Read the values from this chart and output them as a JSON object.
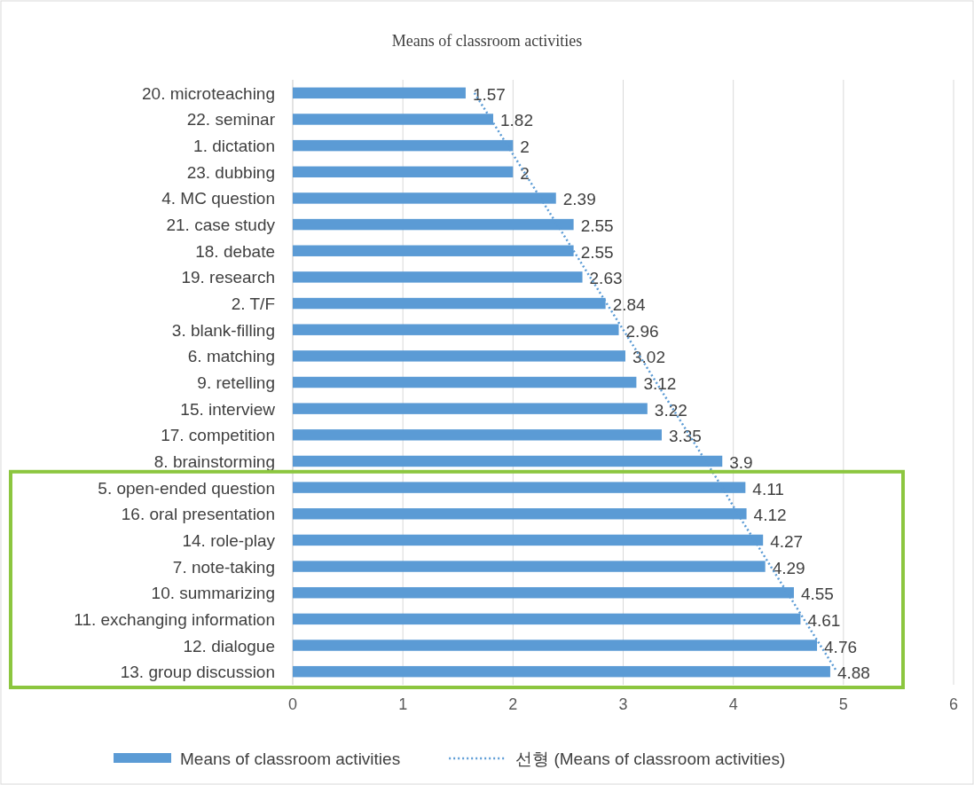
{
  "chart_data": {
    "type": "bar",
    "orientation": "horizontal",
    "title": "Means of classroom activities",
    "categories": [
      "20. microteaching",
      "22. seminar",
      "1. dictation",
      "23. dubbing",
      "4. MC question",
      "21. case study",
      "18. debate",
      "19. research",
      "2. T/F",
      "3. blank-filling",
      "6. matching",
      "9. retelling",
      "15. interview",
      "17. competition",
      "8. brainstorming",
      "5. open-ended question",
      "16. oral presentation",
      "14. role-play",
      "7. note-taking",
      "10. summarizing",
      "11. exchanging information",
      "12. dialogue",
      "13. group discussion"
    ],
    "series": [
      {
        "name": "Means of classroom activities",
        "color": "#5b9bd5",
        "values": [
          1.57,
          1.82,
          2,
          2,
          2.39,
          2.55,
          2.55,
          2.63,
          2.84,
          2.96,
          3.02,
          3.12,
          3.22,
          3.35,
          3.9,
          4.11,
          4.12,
          4.27,
          4.29,
          4.55,
          4.61,
          4.76,
          4.88
        ],
        "value_labels": [
          "1.57",
          "1.82",
          "2",
          "2",
          "2.39",
          "2.55",
          "2.55",
          "2.63",
          "2.84",
          "2.96",
          "3.02",
          "3.12",
          "3.22",
          "3.35",
          "3.9",
          "4.11",
          "4.12",
          "4.27",
          "4.29",
          "4.55",
          "4.61",
          "4.76",
          "4.88"
        ]
      },
      {
        "name": "선형 (Means of classroom activities)",
        "type": "line",
        "line_style": "dotted",
        "color": "#5b9bd5",
        "values": [
          1.65,
          1.8,
          1.95,
          2.1,
          2.25,
          2.4,
          2.55,
          2.7,
          2.85,
          3.0,
          3.15,
          3.3,
          3.45,
          3.6,
          3.75,
          3.9,
          4.04,
          4.19,
          4.34,
          4.49,
          4.64,
          4.79,
          4.94
        ]
      }
    ],
    "xlim": [
      0,
      6
    ],
    "xticks": [
      0,
      1,
      2,
      3,
      4,
      5,
      6
    ],
    "grid": "x",
    "legend": "bottom"
  }
}
